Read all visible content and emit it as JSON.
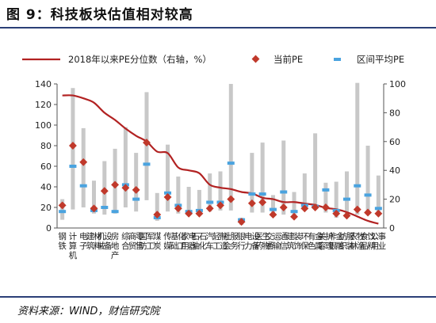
{
  "figure": {
    "title": "图 9：科技板块估值相对较高",
    "source": "资料来源：WIND，财信研究院"
  },
  "colors": {
    "rule": "#2b3f77",
    "percentile_line": "#b22222",
    "current_pe": "#c0392b",
    "range_bar": "#c8c8c8",
    "interval_avg": "#4aa3df"
  },
  "chart_data": {
    "type": "bar",
    "title": "",
    "xlabel": "",
    "ylabel": "",
    "ylim_left": [
      0,
      140
    ],
    "yticks_left": [
      0,
      20,
      40,
      60,
      80,
      100,
      120,
      140
    ],
    "ylim_right": [
      0,
      100
    ],
    "yticks_right": [
      0,
      20,
      40,
      60,
      80,
      100
    ],
    "grid": false,
    "legend_position": "top",
    "legend": [
      {
        "key": "percentile",
        "label": "2018年以来PE分位数（右轴，%）"
      },
      {
        "key": "current",
        "label": "当前PE"
      },
      {
        "key": "avg",
        "label": "区间平均PE"
      }
    ],
    "categories": [
      "钢铁",
      "计算机",
      "电子",
      "建筑材料",
      "机械设备",
      "房地产",
      "综合",
      "商贸零售",
      "国防军工",
      "煤炭",
      "传媒",
      "基础化工",
      "家用电器",
      "石油石化",
      "汽车",
      "轻工制造",
      "社会服务",
      "银行",
      "电力设备",
      "医药生物",
      "交通运输",
      "通信",
      "建筑装饰",
      "环保",
      "有色金属",
      "美容护理",
      "非银金融",
      "纺织服装",
      "农林牧渔",
      "食品饮料",
      "公用事业"
    ],
    "series": [
      {
        "key": "range_low",
        "axis": "left",
        "values": [
          8,
          18,
          20,
          14,
          13,
          14,
          20,
          16,
          27,
          7,
          16,
          14,
          12,
          14,
          16,
          17,
          17,
          3,
          15,
          15,
          13,
          13,
          10,
          18,
          19,
          15,
          10,
          13,
          13,
          13,
          13
        ]
      },
      {
        "key": "range_high",
        "axis": "left",
        "values": [
          28,
          136,
          97,
          46,
          65,
          77,
          98,
          73,
          132,
          34,
          81,
          50,
          40,
          37,
          53,
          55,
          140,
          10,
          73,
          83,
          32,
          85,
          35,
          53,
          92,
          44,
          45,
          55,
          141,
          80,
          51
        ]
      },
      {
        "key": "current",
        "axis": "left",
        "values": [
          22,
          80,
          64,
          19,
          36,
          42,
          39,
          37,
          83,
          13,
          30,
          19,
          14,
          14,
          19,
          22,
          28,
          6,
          24,
          25,
          13,
          20,
          11,
          19,
          20,
          20,
          14,
          12,
          18,
          15,
          14
        ]
      },
      {
        "key": "avg",
        "axis": "left",
        "values": [
          16,
          60,
          41,
          17,
          20,
          16,
          42,
          28,
          62,
          10,
          34,
          22,
          16,
          17,
          25,
          25,
          63,
          8,
          33,
          33,
          18,
          35,
          16,
          22,
          21,
          37,
          17,
          28,
          41,
          32,
          19
        ]
      },
      {
        "key": "percentile",
        "axis": "right",
        "values": [
          92,
          92,
          90,
          87,
          80,
          75,
          69,
          64,
          60,
          53,
          52,
          42,
          40,
          38,
          30,
          28,
          27,
          25,
          24,
          21,
          20,
          18,
          18,
          17,
          16,
          14,
          13,
          11,
          8,
          5,
          3
        ]
      }
    ]
  }
}
